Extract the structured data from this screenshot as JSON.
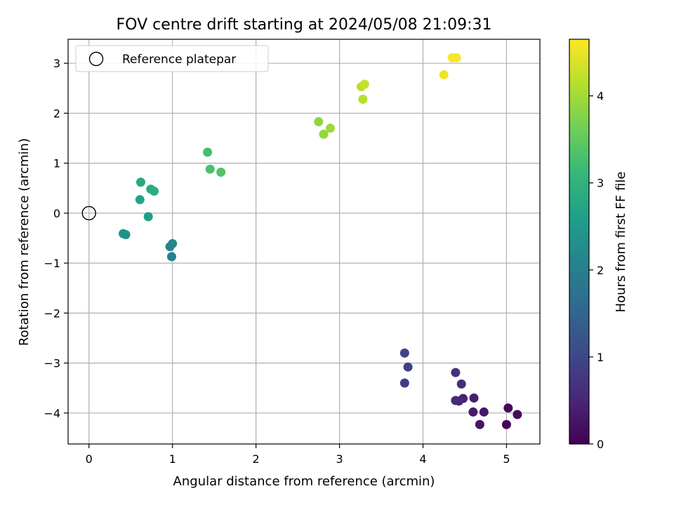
{
  "chart_data": {
    "type": "scatter",
    "title": "FOV centre drift starting at 2024/05/08 21:09:31",
    "xlabel": "Angular distance from reference (arcmin)",
    "ylabel": "Rotation from reference (arcmin)",
    "xlim": [
      -0.25,
      5.4
    ],
    "ylim": [
      -4.62,
      3.48
    ],
    "xticks": [
      0,
      1,
      2,
      3,
      4,
      5
    ],
    "yticks": [
      -4,
      -3,
      -2,
      -1,
      0,
      1,
      2,
      3
    ],
    "xtick_labels": [
      "0",
      "1",
      "2",
      "3",
      "4",
      "5"
    ],
    "ytick_labels": [
      "−4",
      "−3",
      "−2",
      "−1",
      "0",
      "1",
      "2",
      "3"
    ],
    "grid": true,
    "legend": {
      "position": "top-left",
      "entries": [
        {
          "label": "Reference platepar",
          "marker": "open-circle"
        }
      ]
    },
    "reference_point": {
      "x": 0,
      "y": 0
    },
    "colormap": "viridis",
    "colorbar": {
      "label": "Hours from first FF file",
      "range": [
        0,
        4.65
      ],
      "ticks": [
        0,
        1,
        2,
        3,
        4
      ],
      "tick_labels": [
        "0",
        "1",
        "2",
        "3",
        "4"
      ]
    },
    "points": [
      {
        "x": 5.0,
        "y": -4.23,
        "hours": 0.05
      },
      {
        "x": 5.02,
        "y": -3.9,
        "hours": 0.1
      },
      {
        "x": 5.13,
        "y": -4.03,
        "hours": 0.15
      },
      {
        "x": 4.68,
        "y": -4.23,
        "hours": 0.25
      },
      {
        "x": 4.73,
        "y": -3.98,
        "hours": 0.3
      },
      {
        "x": 4.6,
        "y": -3.98,
        "hours": 0.35
      },
      {
        "x": 4.61,
        "y": -3.7,
        "hours": 0.4
      },
      {
        "x": 4.48,
        "y": -3.71,
        "hours": 0.45
      },
      {
        "x": 4.43,
        "y": -3.76,
        "hours": 0.5
      },
      {
        "x": 4.39,
        "y": -3.75,
        "hours": 0.55
      },
      {
        "x": 4.46,
        "y": -3.42,
        "hours": 0.6
      },
      {
        "x": 4.39,
        "y": -3.19,
        "hours": 0.65
      },
      {
        "x": 3.78,
        "y": -3.4,
        "hours": 0.85
      },
      {
        "x": 3.82,
        "y": -3.08,
        "hours": 0.9
      },
      {
        "x": 3.78,
        "y": -2.8,
        "hours": 0.95
      },
      {
        "x": 0.99,
        "y": -0.87,
        "hours": 2.05
      },
      {
        "x": 0.97,
        "y": -0.67,
        "hours": 2.1
      },
      {
        "x": 1.0,
        "y": -0.61,
        "hours": 2.15
      },
      {
        "x": 0.44,
        "y": -0.43,
        "hours": 2.3
      },
      {
        "x": 0.41,
        "y": -0.41,
        "hours": 2.35
      },
      {
        "x": 0.71,
        "y": -0.07,
        "hours": 2.6
      },
      {
        "x": 0.61,
        "y": 0.27,
        "hours": 2.7
      },
      {
        "x": 0.62,
        "y": 0.62,
        "hours": 2.8
      },
      {
        "x": 0.74,
        "y": 0.48,
        "hours": 2.85
      },
      {
        "x": 0.78,
        "y": 0.44,
        "hours": 2.9
      },
      {
        "x": 1.42,
        "y": 1.22,
        "hours": 3.25
      },
      {
        "x": 1.45,
        "y": 0.88,
        "hours": 3.3
      },
      {
        "x": 1.58,
        "y": 0.82,
        "hours": 3.35
      },
      {
        "x": 2.75,
        "y": 1.83,
        "hours": 3.85
      },
      {
        "x": 2.81,
        "y": 1.58,
        "hours": 3.9
      },
      {
        "x": 2.89,
        "y": 1.7,
        "hours": 3.95
      },
      {
        "x": 3.28,
        "y": 2.28,
        "hours": 4.15
      },
      {
        "x": 3.26,
        "y": 2.53,
        "hours": 4.2
      },
      {
        "x": 3.3,
        "y": 2.58,
        "hours": 4.25
      },
      {
        "x": 4.25,
        "y": 2.77,
        "hours": 4.55
      },
      {
        "x": 4.35,
        "y": 3.11,
        "hours": 4.6
      },
      {
        "x": 4.4,
        "y": 3.11,
        "hours": 4.62
      }
    ]
  }
}
